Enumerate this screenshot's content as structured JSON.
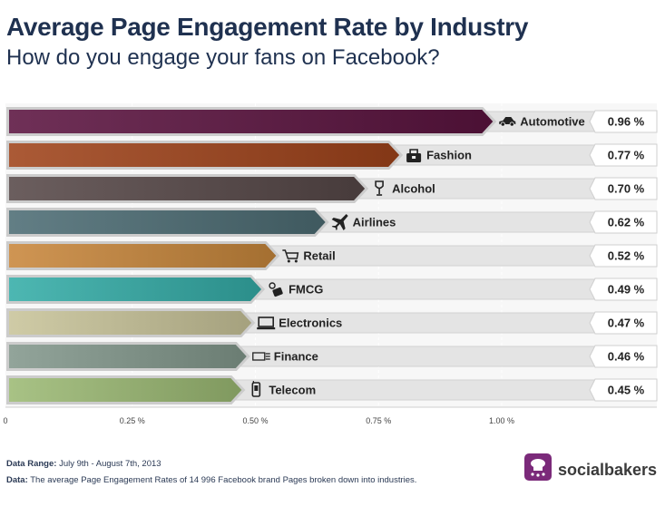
{
  "header": {
    "title": "Average Page Engagement Rate by Industry",
    "subtitle": "How do you engage your fans on Facebook?"
  },
  "chart_data": {
    "type": "bar",
    "orientation": "horizontal",
    "categories": [
      "Automotive",
      "Fashion",
      "Alcohol",
      "Airlines",
      "Retail",
      "FMCG",
      "Electronics",
      "Finance",
      "Telecom"
    ],
    "values": [
      0.96,
      0.77,
      0.7,
      0.62,
      0.52,
      0.49,
      0.47,
      0.46,
      0.45
    ],
    "value_labels": [
      "0.96 %",
      "0.77 %",
      "0.70 %",
      "0.62 %",
      "0.52 %",
      "0.49 %",
      "0.47 %",
      "0.46 %",
      "0.45 %"
    ],
    "icons": [
      "car-icon",
      "handbag-icon",
      "wine-glass-icon",
      "airplane-icon",
      "shopping-cart-icon",
      "fmcg-icon",
      "laptop-icon",
      "money-icon",
      "mobile-phone-icon"
    ],
    "colors": [
      "#5b1440",
      "#a0431b",
      "#574848",
      "#4d6c74",
      "#c8873c",
      "#35ada8",
      "#c9c49a",
      "#83988c",
      "#9cba74"
    ],
    "x_ticks": [
      0,
      0.25,
      0.5,
      0.75,
      1.0
    ],
    "x_tick_labels": [
      "0",
      "0.25 %",
      "0.50 %",
      "0.75 %",
      "1.00 %"
    ],
    "xlim": [
      0,
      1.25
    ],
    "grid": true
  },
  "footer": {
    "range_label": "Data Range:",
    "range_value": "July 9th - August 7th, 2013",
    "data_label": "Data:",
    "data_value": "The average Page Engagement Rates of 14 996 Facebook brand Pages broken down into industries."
  },
  "brand": {
    "name": "socialbakers",
    "color": "#7b2a7a"
  }
}
